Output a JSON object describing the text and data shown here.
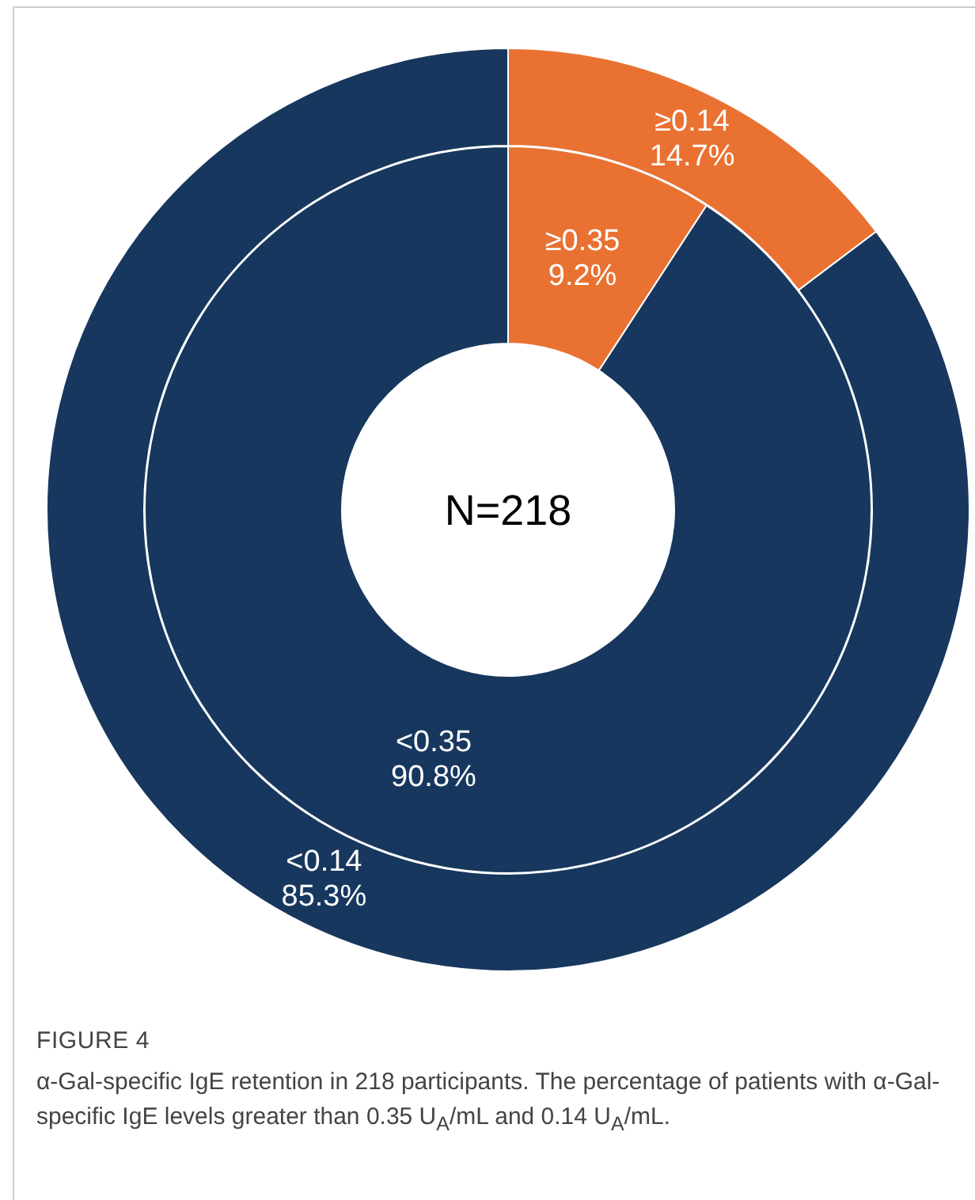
{
  "chart_data": [
    {
      "type": "donut",
      "legend": false,
      "categories": [
        "≥0.14",
        "<0.14"
      ],
      "values": [
        14.7,
        85.3
      ],
      "colors": [
        "#e97132",
        "#17375e"
      ],
      "value_labels": [
        "14.7%",
        "85.3%"
      ],
      "annotations": [
        "FIGURE 4",
        "α-Gal-specific IgE retention in 218 participants. The percentage of patients with α-Gal-specific IgE levels greater than 0.35 U$_{A}$/mL and 0.14 U$_{A}$/mL."
      ]
    },
    {
      "type": "donut",
      "legend": false,
      "categories": [
        "≥0.35",
        "<0.35"
      ],
      "values": [
        9.2,
        90.8
      ],
      "colors": [
        "#e97132",
        "#17375e"
      ],
      "value_labels": [
        "9.2%",
        "90.8%"
      ],
      "annotations": [
        "N=218"
      ]
    }
  ]
}
